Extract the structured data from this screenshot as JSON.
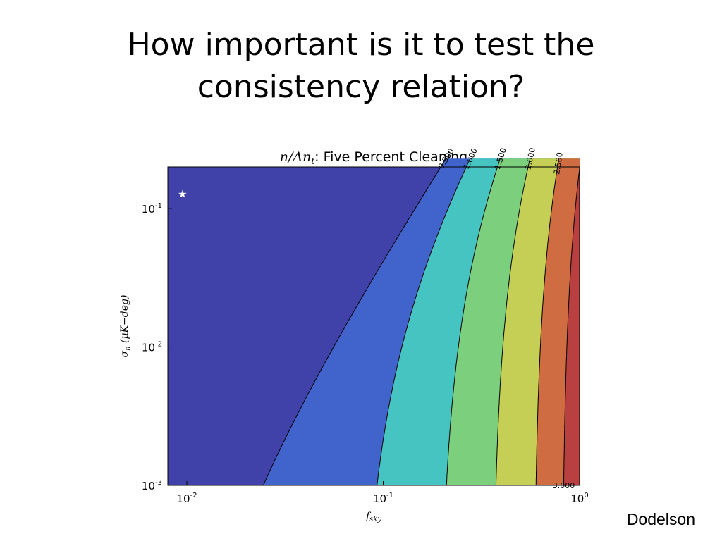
{
  "slide": {
    "title_line1": "How important is it to test the",
    "title_line2": "consistency relation?",
    "credit": "Dodelson"
  },
  "chart_data": {
    "type": "contour",
    "title_math": "n/Δn",
    "title_math_sub": "t",
    "title_text": ": Five Percent Cleaning",
    "xlabel_main": "f",
    "xlabel_sub": "sky",
    "ylabel_main": "σ",
    "ylabel_sub": "n",
    "ylabel_units": " (μK−deg)",
    "x_scale": "log",
    "y_scale": "log",
    "xlim": [
      0.008,
      1.0
    ],
    "ylim": [
      0.001,
      0.2
    ],
    "x_ticks": [
      {
        "base": "10",
        "exp": "-2",
        "value": 0.01
      },
      {
        "base": "10",
        "exp": "-1",
        "value": 0.1
      },
      {
        "base": "10",
        "exp": "0",
        "value": 1.0
      }
    ],
    "y_ticks": [
      {
        "base": "10",
        "exp": "-3",
        "value": 0.001
      },
      {
        "base": "10",
        "exp": "-2",
        "value": 0.01
      },
      {
        "base": "10",
        "exp": "-1",
        "value": 0.1
      }
    ],
    "contour_levels": [
      {
        "level": "0.500",
        "value": 0.5,
        "x_at_floor": 0.0245,
        "fill_color": "#4042aa"
      },
      {
        "level": "1.000",
        "value": 1.0,
        "x_at_floor": 0.093,
        "fill_color": "#4164cc"
      },
      {
        "level": "1.500",
        "value": 1.5,
        "x_at_floor": 0.21,
        "fill_color": "#46c4c2"
      },
      {
        "level": "2.000",
        "value": 2.0,
        "x_at_floor": 0.375,
        "fill_color": "#7ccf7c"
      },
      {
        "level": "2.500",
        "value": 2.5,
        "x_at_floor": 0.6,
        "fill_color": "#c5cf55"
      },
      {
        "level": "3.000",
        "value": 3.0,
        "x_at_floor": 0.83,
        "fill_color": "#d06c42"
      }
    ],
    "top_band_color": "#b84040",
    "marker": {
      "symbol": "★",
      "x": 0.0095,
      "y": 0.127,
      "color": "#ffffff"
    }
  }
}
